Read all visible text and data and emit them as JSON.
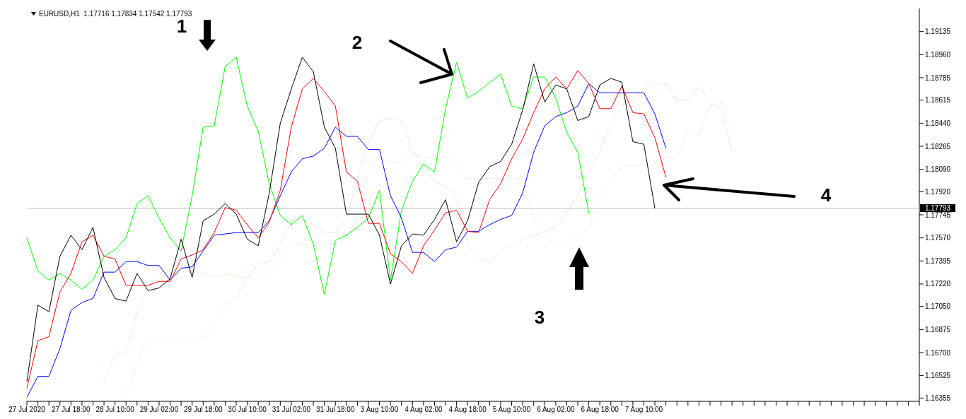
{
  "chart_data": {
    "type": "line",
    "title": "EURUSD,H1  1.17716 1.17834 1.17542 1.17793",
    "categories": [
      "27 Jul 2020",
      null,
      null,
      null,
      "27 Jul 18:00",
      null,
      null,
      null,
      "28 Jul 10:00",
      null,
      null,
      null,
      "29 Jul 02:00",
      null,
      null,
      null,
      "29 Jul 18:00",
      null,
      null,
      null,
      "30 Jul 10:00",
      null,
      null,
      null,
      "31 Jul 02:00",
      null,
      null,
      null,
      "31 Jul 18:00",
      null,
      null,
      null,
      "3 Aug 10:00",
      null,
      null,
      null,
      "4 Aug 02:00",
      null,
      null,
      null,
      "4 Aug 18:00",
      null,
      null,
      null,
      "5 Aug 10:00",
      null,
      null,
      null,
      "6 Aug 02:00",
      null,
      null,
      null,
      "6 Aug 18:00",
      null,
      null,
      null,
      "7 Aug 10:00",
      null,
      null,
      null,
      null,
      null,
      null,
      null,
      null,
      null,
      null,
      null,
      null,
      null,
      null,
      null,
      null,
      null,
      null,
      null,
      null,
      null,
      null,
      null,
      null,
      null
    ],
    "series": [
      {
        "color": "#f4a460",
        "line_style": "dotted",
        "values": [
          null,
          null,
          null,
          null,
          null,
          null,
          null,
          1.1647,
          1.1668,
          1.167,
          1.1701,
          1.1719,
          1.173,
          1.1733,
          1.1732,
          1.1731,
          1.173,
          1.1728,
          1.1729,
          1.1729,
          1.1726,
          1.1737,
          1.1739,
          1.1752,
          1.177,
          1.177,
          1.1767,
          1.1761,
          1.1761,
          1.1771,
          1.1803,
          1.1829,
          1.1846,
          1.1847,
          1.1847,
          1.1822,
          1.1815,
          1.18,
          1.1796,
          1.1789,
          1.1752,
          1.1741,
          1.1739,
          1.1748,
          1.1751,
          1.1756,
          1.1759,
          1.1762,
          1.1765,
          1.1776,
          1.1789,
          1.1809,
          1.1822,
          1.1844,
          1.1857,
          1.1861,
          1.187,
          1.1874,
          1.1874,
          1.1861,
          1.1861,
          1.1872,
          1.1859,
          1.1855,
          1.1822,
          null,
          null,
          null,
          null,
          null,
          null,
          null,
          null,
          null,
          null,
          null,
          null,
          null,
          null,
          null,
          null,
          null
        ]
      },
      {
        "color": "#d8bfd8",
        "line_style": "dotted",
        "values": [
          null,
          null,
          null,
          null,
          null,
          null,
          null,
          null,
          null,
          1.1636,
          1.1662,
          1.1681,
          1.1681,
          1.1681,
          1.1681,
          1.1681,
          1.1681,
          1.1693,
          1.1707,
          1.1712,
          1.1728,
          1.1726,
          1.1732,
          1.1741,
          1.1752,
          1.1752,
          1.1752,
          1.1752,
          1.1752,
          1.1757,
          1.1771,
          1.1807,
          1.1818,
          1.1814,
          1.1814,
          1.182,
          1.1818,
          1.1818,
          1.1818,
          1.1815,
          1.1802,
          1.1802,
          1.1802,
          1.1802,
          1.1802,
          1.1802,
          1.1771,
          1.1761,
          1.1751,
          1.1752,
          1.1758,
          1.1765,
          1.1789,
          1.18,
          1.1811,
          1.1812,
          1.1812,
          1.1813,
          1.1818,
          1.1818,
          1.1841,
          1.1834,
          1.1858,
          1.1859,
          1.1836,
          null,
          null,
          null,
          null,
          null,
          null,
          null,
          null,
          null,
          null,
          null,
          null,
          null,
          null,
          null,
          null,
          null
        ]
      },
      {
        "color": "#00ff00",
        "values": [
          1.1757,
          1.1732,
          1.1725,
          1.173,
          1.1725,
          1.1718,
          1.1725,
          1.1743,
          1.1748,
          1.1757,
          1.1783,
          1.1789,
          1.1772,
          1.1757,
          1.1747,
          1.1789,
          1.1841,
          1.1842,
          1.1887,
          1.1894,
          1.1857,
          1.1838,
          1.1798,
          1.1774,
          1.1767,
          1.1774,
          1.1752,
          1.1714,
          1.1755,
          1.1759,
          1.1765,
          1.1772,
          1.1793,
          1.1725,
          1.1778,
          1.18,
          1.1813,
          1.1807,
          1.1855,
          1.189,
          1.1863,
          1.1868,
          1.1875,
          1.1881,
          1.1857,
          1.1855,
          1.1879,
          1.1879,
          1.1863,
          1.1837,
          1.1822,
          1.1776,
          null,
          null,
          null,
          null,
          null,
          null,
          null,
          null,
          null,
          null,
          null,
          null,
          null,
          null,
          null,
          null,
          null,
          null,
          null,
          null,
          null,
          null,
          null,
          null,
          null,
          null,
          null,
          null,
          null,
          null
        ]
      },
      {
        "color": "#0000ff",
        "values": [
          1.1636,
          1.1652,
          1.1652,
          1.1673,
          1.1702,
          1.1708,
          1.1711,
          1.1731,
          1.1731,
          1.1739,
          1.1739,
          1.1736,
          1.1736,
          1.1725,
          1.1734,
          1.1735,
          1.1747,
          1.1759,
          1.176,
          1.1761,
          1.1761,
          1.1761,
          1.177,
          1.1789,
          1.1807,
          1.1817,
          1.1819,
          1.1825,
          1.1841,
          1.1834,
          1.1834,
          1.1824,
          1.1824,
          1.1789,
          1.1772,
          1.1746,
          1.1746,
          1.1739,
          1.1748,
          1.175,
          1.1762,
          1.1762,
          1.1767,
          1.1771,
          1.1774,
          1.1791,
          1.1822,
          1.1842,
          1.1849,
          1.1852,
          1.1857,
          1.1874,
          1.1867,
          1.1867,
          1.1867,
          1.1867,
          1.1867,
          1.1851,
          1.1825,
          null,
          null,
          null,
          null,
          null,
          null,
          null,
          null,
          null,
          null,
          null,
          null,
          null,
          null,
          null,
          null,
          null,
          null,
          null,
          null,
          null,
          null,
          null
        ]
      },
      {
        "color": "#ff0000",
        "values": [
          1.1643,
          1.1679,
          1.1682,
          1.1716,
          1.173,
          1.1754,
          1.1759,
          1.1743,
          1.1741,
          1.1721,
          1.1721,
          1.1721,
          1.1724,
          1.1724,
          1.1741,
          1.1744,
          1.1748,
          1.1761,
          1.178,
          1.1778,
          1.1767,
          1.1757,
          1.1769,
          1.1793,
          1.1841,
          1.187,
          1.1878,
          1.1868,
          1.1857,
          1.1807,
          1.18,
          1.1768,
          1.1768,
          1.1745,
          1.1739,
          1.173,
          1.1751,
          1.1763,
          1.1776,
          1.1778,
          1.1762,
          1.1761,
          1.1786,
          1.1798,
          1.1817,
          1.1832,
          1.1852,
          1.187,
          1.1879,
          1.187,
          1.1884,
          1.1874,
          1.1855,
          1.1855,
          1.1872,
          1.1852,
          1.1851,
          1.1833,
          1.1803,
          null,
          null,
          null,
          null,
          null,
          null,
          null,
          null,
          null,
          null,
          null,
          null,
          null,
          null,
          null,
          null,
          null,
          null,
          null,
          null,
          null,
          null,
          null
        ]
      },
      {
        "color": "#000000",
        "values": [
          1.1648,
          1.1706,
          1.1701,
          1.1743,
          1.1759,
          1.1748,
          1.1765,
          1.1727,
          1.1711,
          1.1709,
          1.173,
          1.1717,
          1.1719,
          1.1726,
          1.1756,
          1.1727,
          1.177,
          1.1775,
          1.1783,
          1.1775,
          1.1756,
          1.1751,
          1.1791,
          1.1844,
          1.187,
          1.1894,
          1.1883,
          1.1841,
          1.1825,
          1.1775,
          1.1775,
          1.1775,
          1.1759,
          1.1722,
          1.1751,
          1.176,
          1.1759,
          1.1771,
          1.1786,
          1.1754,
          1.177,
          1.1799,
          1.1811,
          1.1815,
          1.1828,
          1.1854,
          1.1889,
          1.186,
          1.1873,
          1.187,
          1.1846,
          1.1849,
          1.1873,
          1.1878,
          1.1875,
          1.183,
          1.1828,
          1.17793,
          null,
          null,
          null,
          null,
          null,
          null,
          null,
          null,
          null,
          null,
          null,
          null,
          null,
          null,
          null,
          null,
          null,
          null,
          null,
          null,
          null,
          null,
          null,
          null
        ]
      }
    ],
    "ylim": [
      1.1633,
      1.1931
    ],
    "yticks": [
      1.16355,
      1.16525,
      {
        "value": 1.167,
        "label": "1.16700"
      },
      1.16875,
      {
        "value": 1.1705,
        "label": "1.17050"
      },
      {
        "value": 1.1722,
        "label": "1.17220"
      },
      1.17395,
      {
        "value": 1.1757,
        "label": "1.17570"
      },
      1.17745,
      {
        "value": 1.1792,
        "label": "1.17920"
      },
      {
        "value": 1.1809,
        "label": "1.18090"
      },
      1.18265,
      {
        "value": 1.1844,
        "label": "1.18440"
      },
      1.18615,
      1.18785,
      {
        "value": 1.1896,
        "label": "1.18960"
      },
      1.19135
    ],
    "ref_lines": [
      {
        "axis": "y",
        "value": 1.17793,
        "label": "1.17793",
        "color": "#c0c0c0"
      }
    ],
    "annotations": [
      "1",
      "2",
      "3",
      "4"
    ]
  }
}
